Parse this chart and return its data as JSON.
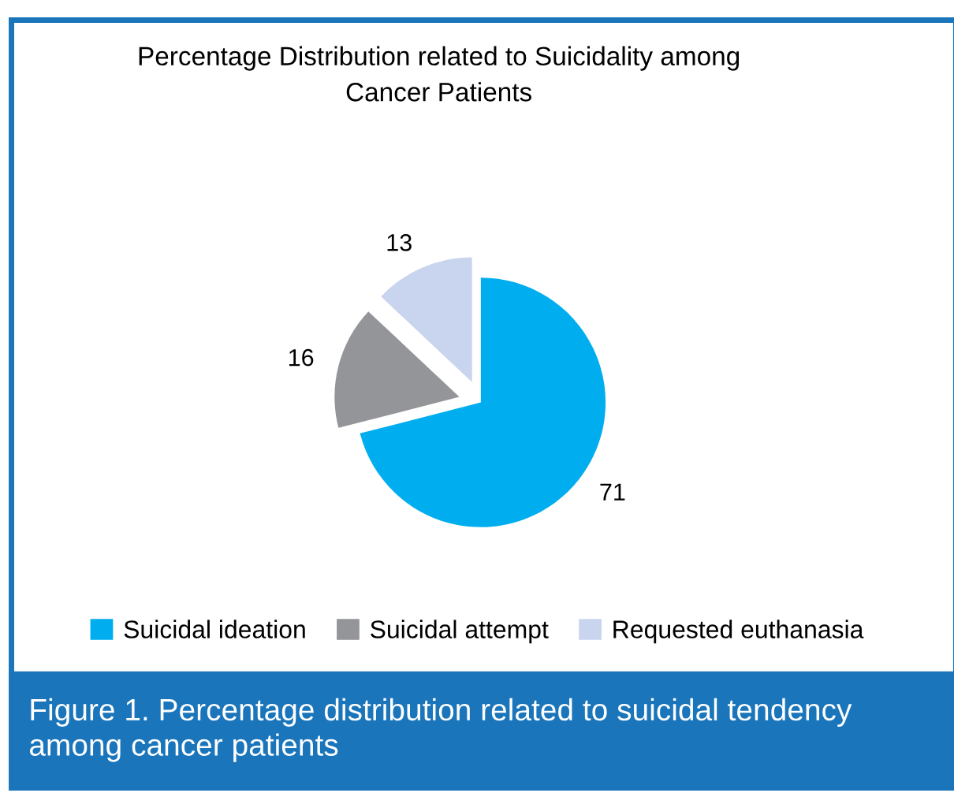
{
  "chart_data": {
    "type": "pie",
    "title": "Percentage Distribution related to Suicidality among\nCancer Patients",
    "categories": [
      "Suicidal ideation",
      "Suicidal attempt",
      "Requested euthanasia"
    ],
    "values": [
      71,
      16,
      13
    ],
    "colors": [
      "#00aeef",
      "#939598",
      "#c9d4ee"
    ],
    "data_labels": true,
    "legend": "bottom",
    "annotations": [
      "Figure 1. Percentage distribution related to suicidal tendency among cancer patients"
    ]
  }
}
